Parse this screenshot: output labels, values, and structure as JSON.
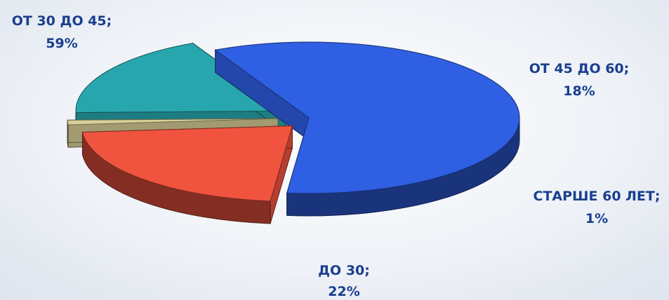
{
  "chart_data": {
    "type": "pie",
    "style": "3d-exploded",
    "slices": [
      {
        "label": "ОТ 30 ДО 45;",
        "value": 59,
        "value_text": "59%",
        "color": "#2f5fe2"
      },
      {
        "label": "ОТ 45 ДО 60;",
        "value": 18,
        "value_text": "18%",
        "color": "#27a7ad"
      },
      {
        "label": "СТАРШЕ 60 ЛЕТ;",
        "value": 1,
        "value_text": "1%",
        "color": "#d8cf97"
      },
      {
        "label": "ДО 30;",
        "value": 22,
        "value_text": "22%",
        "color": "#f0543f"
      }
    ],
    "label_color": "#1a3f8f"
  }
}
